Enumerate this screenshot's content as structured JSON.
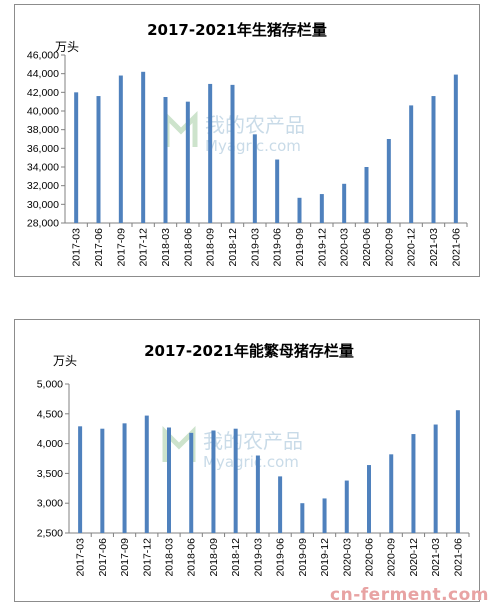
{
  "chart_data": [
    {
      "type": "bar",
      "title": "2017-2021年生猪存栏量",
      "unit_label": "万头",
      "categories": [
        "2017-03",
        "2017-06",
        "2017-09",
        "2017-12",
        "2018-03",
        "2018-06",
        "2018-09",
        "2018-12",
        "2019-03",
        "2019-06",
        "2019-09",
        "2019-12",
        "2020-03",
        "2020-06",
        "2020-09",
        "2020-12",
        "2021-03",
        "2021-06"
      ],
      "values": [
        42000,
        41600,
        43800,
        44200,
        41500,
        41000,
        42900,
        42800,
        37500,
        34800,
        30700,
        31100,
        32200,
        34000,
        37000,
        40600,
        41600,
        43900
      ],
      "ylim": [
        28000,
        46000
      ],
      "yticks": [
        "28,000",
        "30,000",
        "32,000",
        "34,000",
        "36,000",
        "38,000",
        "40,000",
        "42,000",
        "44,000",
        "46,000"
      ],
      "grid": false,
      "bar_color": "#4f81bd"
    },
    {
      "type": "bar",
      "title": "2017-2021年能繁母猪存栏量",
      "unit_label": "万头",
      "categories": [
        "2017-03",
        "2017-06",
        "2017-09",
        "2017-12",
        "2018-03",
        "2018-06",
        "2018-09",
        "2018-12",
        "2019-03",
        "2019-06",
        "2019-09",
        "2019-12",
        "2020-03",
        "2020-06",
        "2020-09",
        "2020-12",
        "2021-03",
        "2021-06"
      ],
      "values": [
        4290,
        4250,
        4340,
        4470,
        4270,
        4180,
        4220,
        4250,
        3800,
        3450,
        3000,
        3080,
        3380,
        3640,
        3820,
        4160,
        4320,
        4560
      ],
      "ylim": [
        2500,
        5000
      ],
      "yticks": [
        "2,500",
        "3,000",
        "3,500",
        "4,000",
        "4,500",
        "5,000"
      ],
      "grid": false,
      "bar_color": "#4f81bd"
    }
  ],
  "watermark": {
    "cn": "我的农产品",
    "en": "Myagric.com"
  },
  "corner_watermark": "cn-ferment.com"
}
